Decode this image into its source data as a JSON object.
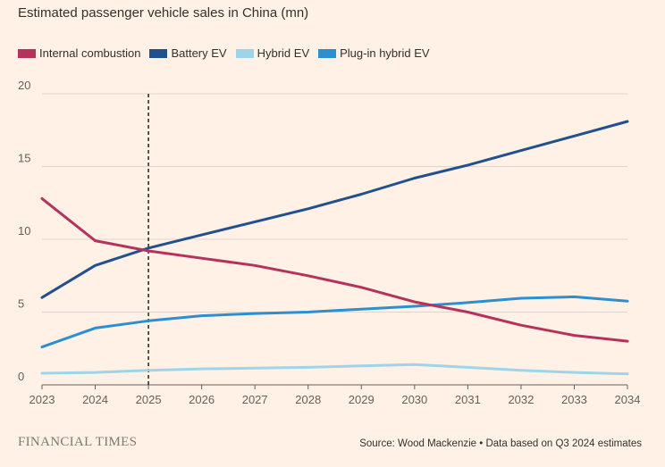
{
  "chart_data": {
    "type": "line",
    "title": "Estimated passenger vehicle sales in China (mn)",
    "xlabel": "",
    "ylabel": "",
    "x": [
      2023,
      2024,
      2025,
      2026,
      2027,
      2028,
      2029,
      2030,
      2031,
      2032,
      2033,
      2034
    ],
    "x_tick_labels": [
      "2023",
      "2024",
      "2025",
      "2026",
      "2027",
      "2028",
      "2029",
      "2030",
      "2031",
      "2032",
      "2033",
      "2034"
    ],
    "y_tick_values": [
      0,
      5,
      10,
      15,
      20
    ],
    "y_tick_labels": [
      "0",
      "5",
      "10",
      "15",
      "20"
    ],
    "xlim": [
      2023,
      2034
    ],
    "ylim": [
      0,
      20
    ],
    "grid": true,
    "legend_position": "top-left",
    "reference_line": {
      "x": 2025,
      "style": "dashed"
    },
    "series": [
      {
        "name": "Internal combustion",
        "color": "#b5325d",
        "values": [
          12.8,
          9.9,
          9.2,
          8.7,
          8.2,
          7.5,
          6.7,
          5.7,
          5.0,
          4.1,
          3.4,
          3.0
        ]
      },
      {
        "name": "Battery EV",
        "color": "#22508c",
        "values": [
          6.0,
          8.2,
          9.4,
          10.3,
          11.2,
          12.1,
          13.1,
          14.2,
          15.1,
          16.1,
          17.1,
          18.1
        ]
      },
      {
        "name": "Hybrid EV",
        "color": "#9dd4ea",
        "values": [
          0.8,
          0.85,
          1.0,
          1.1,
          1.15,
          1.2,
          1.3,
          1.4,
          1.2,
          1.0,
          0.85,
          0.75
        ]
      },
      {
        "name": "Plug-in hybrid EV",
        "color": "#2c8fcf",
        "values": [
          2.6,
          3.9,
          4.4,
          4.75,
          4.9,
          5.0,
          5.2,
          5.4,
          5.65,
          5.95,
          6.05,
          5.75
        ]
      }
    ]
  },
  "footer": {
    "brand": "FINANCIAL TIMES",
    "source": "Source: Wood Mackenzie • Data based on Q3 2024 estimates"
  }
}
